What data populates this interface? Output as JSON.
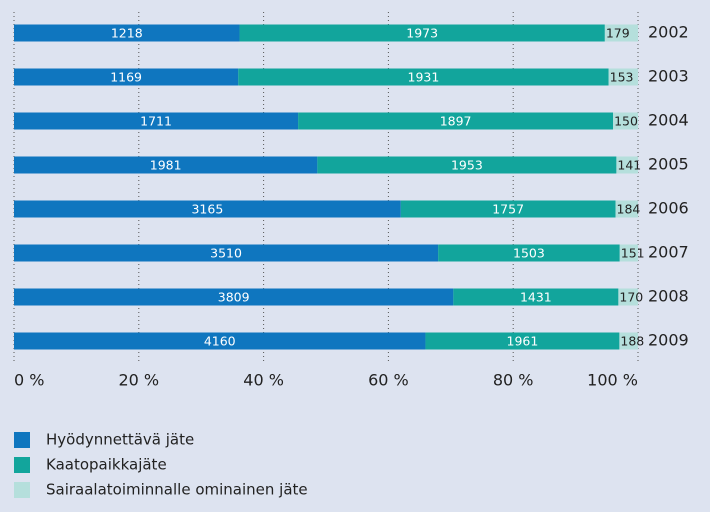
{
  "chart_data": {
    "type": "bar100h",
    "categories": [
      "2002",
      "2003",
      "2004",
      "2005",
      "2006",
      "2007",
      "2008",
      "2009"
    ],
    "series": [
      {
        "name": "Hyödynnettävä jäte",
        "color": "#0f76bf",
        "values": [
          1218,
          1169,
          1711,
          1981,
          3165,
          3510,
          3809,
          4160
        ]
      },
      {
        "name": "Kaatopaikkajäte",
        "color": "#12a59c",
        "values": [
          1973,
          1931,
          1897,
          1953,
          1757,
          1503,
          1431,
          1961
        ]
      },
      {
        "name": "Sairaalatoiminnalle ominainen jäte",
        "color": "#b5dfdc",
        "values": [
          179,
          153,
          150,
          141,
          184,
          151,
          170,
          188
        ]
      }
    ],
    "xlim": [
      0,
      100
    ],
    "xticks": [
      {
        "value": 0,
        "label": "0 %"
      },
      {
        "value": 20,
        "label": "20 %"
      },
      {
        "value": 40,
        "label": "40 %"
      },
      {
        "value": 60,
        "label": "60 %"
      },
      {
        "value": 80,
        "label": "80 %"
      },
      {
        "value": 100,
        "label": "100 %"
      }
    ],
    "grid": true
  }
}
